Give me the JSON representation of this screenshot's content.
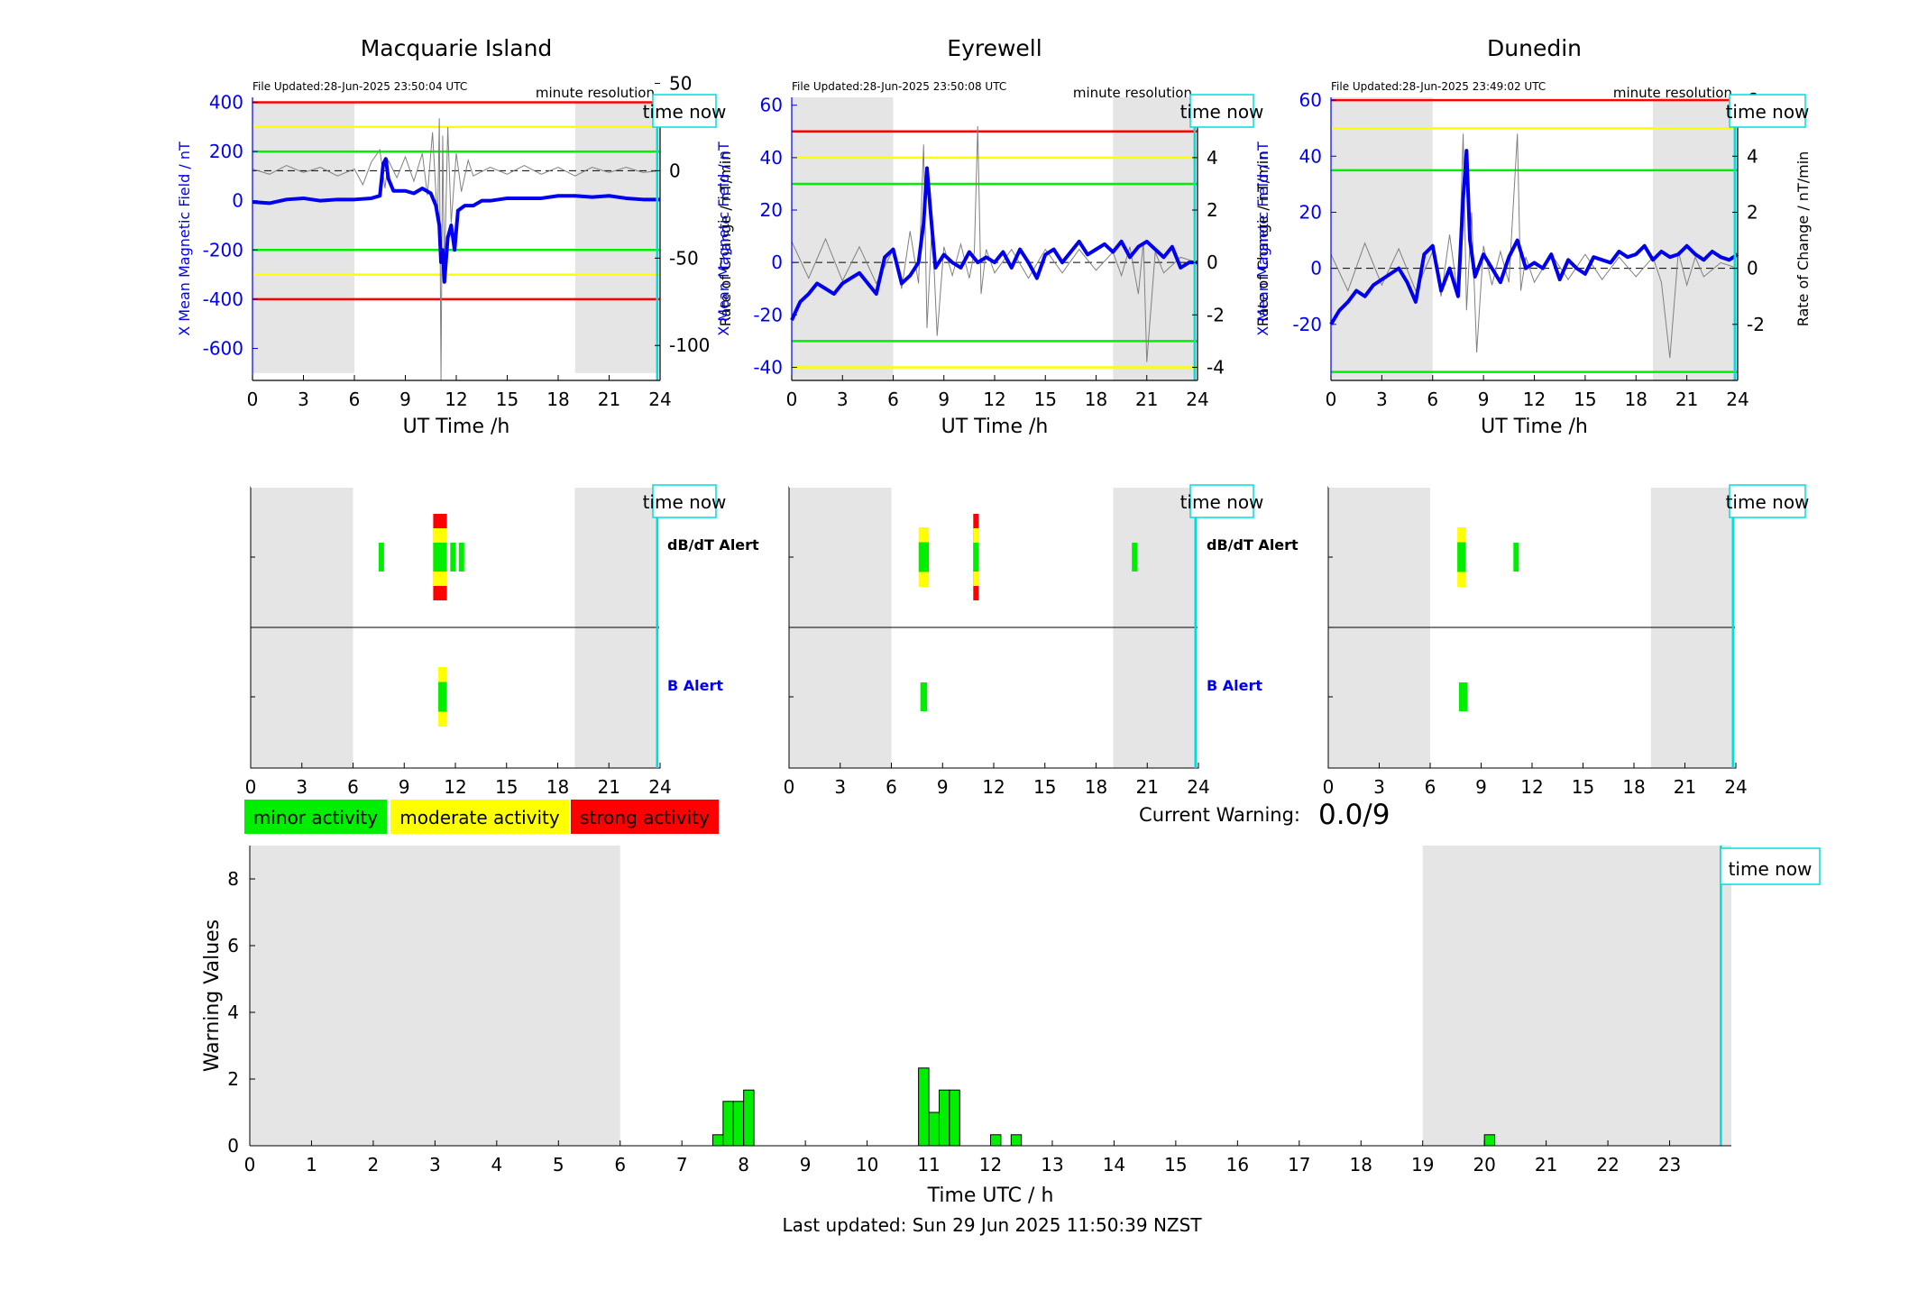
{
  "colors": {
    "blue": "#0000ee",
    "gray_trace": "#808080",
    "red": "#ff0000",
    "yellow": "#ffff00",
    "green": "#00ee00",
    "cyan": "#00dddd",
    "night_shade": "#e5e5e5"
  },
  "common": {
    "minute_resolution": "minute resolution",
    "time_now": "time now",
    "x_label": "UT Time /h",
    "left_axis_label": "X Mean Magnetic Field / nT",
    "right_axis_label": "Rate of Change / nT/min",
    "dbdt_alert": "dB/dT Alert",
    "b_alert": "B Alert"
  },
  "legend": {
    "minor": "minor activity",
    "moderate": "moderate activity",
    "strong": "strong activity"
  },
  "current_warning": {
    "label": "Current Warning:",
    "value": "0.0/9"
  },
  "footer": {
    "last_updated": "Last updated: Sun 29 Jun 2025 11:50:39 NZST"
  },
  "chart_data": [
    {
      "type": "line",
      "title": "Macquarie Island",
      "file_updated": "File Updated:28-Jun-2025 23:50:04 UTC",
      "xlabel": "UT Time /h",
      "ylabel": "X Mean Magnetic Field / nT",
      "y2label": "Rate of Change / nT/min",
      "xlim": [
        0,
        24
      ],
      "xticks": [
        0,
        3,
        6,
        9,
        12,
        15,
        18,
        21,
        24
      ],
      "ylim": [
        -730,
        420
      ],
      "yticks": [
        400,
        200,
        0,
        -200,
        -400,
        -600
      ],
      "y2lim": [
        -120,
        42
      ],
      "y2ticks": [
        50,
        0,
        -50,
        -100
      ],
      "night_bands": [
        [
          0,
          6
        ],
        [
          19,
          24
        ]
      ],
      "night_band_ylim": [
        -700,
        400
      ],
      "thresholds": [
        {
          "level": "strong",
          "values": [
            400,
            -400
          ]
        },
        {
          "level": "moderate",
          "values": [
            300,
            -300
          ]
        },
        {
          "level": "minor",
          "values": [
            200,
            -200
          ]
        }
      ],
      "time_now": 23.83,
      "series": [
        {
          "kind": "mean",
          "x": [
            0,
            1,
            2,
            3,
            4,
            5,
            6,
            7,
            7.5,
            7.7,
            7.85,
            8,
            8.3,
            9,
            9.5,
            10,
            10.5,
            10.8,
            11,
            11.1,
            11.2,
            11.3,
            11.5,
            11.7,
            11.9,
            12.1,
            12.5,
            13,
            13.5,
            14,
            15,
            16,
            17,
            18,
            19,
            20,
            21,
            22,
            23,
            24
          ],
          "y": [
            -5,
            -10,
            5,
            10,
            0,
            5,
            5,
            10,
            20,
            150,
            170,
            90,
            40,
            40,
            30,
            50,
            30,
            -20,
            -100,
            -250,
            -200,
            -330,
            -150,
            -100,
            -200,
            -40,
            -20,
            -20,
            0,
            0,
            10,
            10,
            10,
            20,
            20,
            15,
            20,
            10,
            5,
            5
          ]
        },
        {
          "kind": "rate",
          "x": [
            0,
            1,
            2,
            3,
            4,
            5,
            6,
            6.5,
            7,
            7.5,
            7.8,
            8,
            8.5,
            9,
            9.5,
            10,
            10.3,
            10.6,
            10.9,
            11,
            11.1,
            11.2,
            11.3,
            11.5,
            11.7,
            12,
            12.3,
            12.7,
            13,
            14,
            15,
            16,
            17,
            18,
            19,
            20,
            21,
            22,
            23,
            24
          ],
          "y": [
            1,
            -2,
            3,
            -1,
            2,
            -3,
            1,
            -8,
            5,
            12,
            -10,
            6,
            -4,
            8,
            -6,
            10,
            -14,
            22,
            -30,
            30,
            -120,
            20,
            -60,
            25,
            -30,
            10,
            -12,
            6,
            -3,
            2,
            -2,
            3,
            -2,
            2,
            -3,
            2,
            -1,
            2,
            -1,
            0
          ]
        }
      ]
    },
    {
      "type": "line",
      "title": "Eyrewell",
      "file_updated": "File Updated:28-Jun-2025 23:50:08 UTC",
      "xlabel": "UT Time /h",
      "ylabel": "X Mean Magnetic Field / nT",
      "y2label": "Rate of Change / nT/min",
      "xlim": [
        0,
        24
      ],
      "xticks": [
        0,
        3,
        6,
        9,
        12,
        15,
        18,
        21,
        24
      ],
      "ylim": [
        -45,
        63
      ],
      "yticks": [
        60,
        40,
        20,
        0,
        -20,
        -40
      ],
      "y2lim": [
        -4.5,
        6.3
      ],
      "y2ticks": [
        6,
        4,
        2,
        0,
        -2,
        -4
      ],
      "night_bands": [
        [
          0,
          6
        ],
        [
          19,
          24
        ]
      ],
      "night_band_ylim": [
        -45,
        63
      ],
      "thresholds": [
        {
          "level": "strong",
          "values": [
            50
          ]
        },
        {
          "level": "moderate",
          "values": [
            40,
            -40
          ]
        },
        {
          "level": "minor",
          "values": [
            30,
            -30
          ]
        }
      ],
      "time_now": 23.83,
      "series": [
        {
          "kind": "mean",
          "x": [
            0,
            0.5,
            1,
            1.5,
            2,
            2.5,
            3,
            3.5,
            4,
            4.5,
            5,
            5.5,
            6,
            6.5,
            7,
            7.5,
            7.8,
            8,
            8.2,
            8.5,
            9,
            9.5,
            10,
            10.5,
            11,
            11.5,
            12,
            12.5,
            13,
            13.5,
            14,
            14.5,
            15,
            15.5,
            16,
            16.5,
            17,
            17.5,
            18,
            18.5,
            19,
            19.5,
            20,
            20.5,
            21,
            21.5,
            22,
            22.5,
            23,
            23.5,
            24
          ],
          "y": [
            -22,
            -15,
            -12,
            -8,
            -10,
            -12,
            -8,
            -6,
            -4,
            -8,
            -12,
            2,
            5,
            -8,
            -5,
            0,
            15,
            36,
            20,
            -2,
            3,
            0,
            -2,
            4,
            0,
            2,
            0,
            4,
            -2,
            5,
            0,
            -6,
            3,
            5,
            0,
            4,
            8,
            3,
            5,
            7,
            4,
            8,
            2,
            6,
            8,
            5,
            2,
            6,
            -2,
            0,
            0
          ]
        },
        {
          "kind": "rate",
          "x": [
            0,
            1,
            2,
            3,
            4,
            5,
            6,
            6.5,
            7,
            7.5,
            7.8,
            8,
            8.3,
            8.6,
            9,
            9.5,
            10,
            10.5,
            10.8,
            11,
            11.2,
            11.5,
            12,
            13,
            14,
            15,
            16,
            17,
            18,
            19,
            19.5,
            20,
            20.5,
            20.8,
            21,
            21.5,
            22,
            23,
            24
          ],
          "y": [
            0.8,
            -0.6,
            0.9,
            -0.7,
            0.6,
            -0.8,
            0.5,
            -1,
            1.2,
            -0.8,
            4.5,
            -2.5,
            1.5,
            -2.8,
            0.6,
            -0.5,
            0.7,
            -0.6,
            0.4,
            5.2,
            -1.2,
            0.5,
            -0.4,
            0.5,
            -0.6,
            0.5,
            -0.4,
            0.5,
            -0.3,
            0.4,
            -0.5,
            0.6,
            -1.2,
            0.8,
            -3.8,
            0.4,
            -0.4,
            0.2,
            0
          ]
        }
      ]
    },
    {
      "type": "line",
      "title": "Dunedin",
      "file_updated": "File Updated:28-Jun-2025 23:49:02 UTC",
      "xlabel": "UT Time /h",
      "ylabel": "X Mean Magnetic Field / nT",
      "y2label": "Rate of Change / nT/min",
      "xlim": [
        0,
        24
      ],
      "xticks": [
        0,
        3,
        6,
        9,
        12,
        15,
        18,
        21,
        24
      ],
      "ylim": [
        -40,
        61
      ],
      "yticks": [
        60,
        40,
        20,
        0,
        -20
      ],
      "y2lim": [
        -4,
        6.1
      ],
      "y2ticks": [
        6,
        4,
        2,
        0,
        -2
      ],
      "night_bands": [
        [
          0,
          6
        ],
        [
          19,
          24
        ]
      ],
      "night_band_ylim": [
        -40,
        61
      ],
      "thresholds": [
        {
          "level": "strong",
          "values": [
            60
          ]
        },
        {
          "level": "moderate",
          "values": [
            50
          ]
        },
        {
          "level": "minor",
          "values": [
            35,
            -37
          ]
        }
      ],
      "time_now": 23.83,
      "series": [
        {
          "kind": "mean",
          "x": [
            0,
            0.5,
            1,
            1.5,
            2,
            2.5,
            3,
            3.5,
            4,
            4.5,
            5,
            5.5,
            6,
            6.5,
            7,
            7.5,
            7.8,
            8,
            8.2,
            8.5,
            9,
            9.5,
            10,
            10.5,
            11,
            11.5,
            12,
            12.5,
            13,
            13.5,
            14,
            14.5,
            15,
            15.5,
            16,
            16.5,
            17,
            17.5,
            18,
            18.5,
            19,
            19.5,
            20,
            20.5,
            21,
            21.5,
            22,
            22.5,
            23,
            23.5,
            24
          ],
          "y": [
            -20,
            -15,
            -12,
            -8,
            -10,
            -6,
            -4,
            -2,
            0,
            -5,
            -12,
            5,
            8,
            -8,
            0,
            -10,
            25,
            42,
            10,
            -3,
            5,
            0,
            -5,
            4,
            10,
            0,
            2,
            0,
            5,
            -4,
            3,
            0,
            -2,
            4,
            3,
            2,
            6,
            4,
            5,
            8,
            3,
            6,
            4,
            5,
            8,
            5,
            3,
            6,
            4,
            3,
            5
          ]
        },
        {
          "kind": "rate",
          "x": [
            0,
            1,
            2,
            3,
            4,
            5,
            6,
            6.5,
            7,
            7.5,
            7.8,
            8,
            8.3,
            8.6,
            9,
            9.5,
            10,
            10.5,
            11,
            11.2,
            11.5,
            12,
            13,
            14,
            15,
            16,
            17,
            18,
            19,
            19.5,
            20,
            20.5,
            21,
            21.5,
            22,
            23,
            24
          ],
          "y": [
            0.5,
            -0.8,
            0.9,
            -0.6,
            0.7,
            -0.8,
            0.6,
            -1,
            1.2,
            -1,
            4.8,
            -1.5,
            2,
            -3,
            0.8,
            -0.6,
            0.6,
            -0.5,
            4.8,
            -0.8,
            0.4,
            -0.5,
            0.5,
            -0.4,
            0.5,
            -0.4,
            0.4,
            -0.3,
            0.4,
            -0.5,
            -3.2,
            0.6,
            -0.6,
            0.4,
            -0.3,
            0.2,
            0
          ]
        }
      ]
    },
    {
      "type": "bar",
      "title": "",
      "subtype": "alert-timeline",
      "rows": [
        "dB/dT Alert",
        "B Alert"
      ],
      "xlim": [
        0,
        24
      ],
      "xticks": [
        0,
        3,
        6,
        9,
        12,
        15,
        18,
        21,
        24
      ],
      "night_bands": [
        [
          0,
          6
        ],
        [
          19,
          24
        ]
      ],
      "time_now": 23.83,
      "panels": [
        {
          "station": "Macquarie Island",
          "dbdt": [
            {
              "x0": 7.5,
              "x1": 7.8,
              "levels": [
                "minor"
              ]
            },
            {
              "x0": 10.7,
              "x1": 11.5,
              "levels": [
                "strong",
                "moderate",
                "minor"
              ]
            },
            {
              "x0": 11.7,
              "x1": 12.0,
              "levels": [
                "minor"
              ]
            },
            {
              "x0": 12.2,
              "x1": 12.5,
              "levels": [
                "minor"
              ]
            }
          ],
          "b": [
            {
              "x0": 11.0,
              "x1": 11.5,
              "levels": [
                "moderate",
                "minor"
              ]
            }
          ]
        },
        {
          "station": "Eyrewell",
          "dbdt": [
            {
              "x0": 7.6,
              "x1": 8.2,
              "levels": [
                "moderate",
                "minor"
              ]
            },
            {
              "x0": 10.8,
              "x1": 11.1,
              "levels": [
                "strong",
                "moderate",
                "minor"
              ]
            },
            {
              "x0": 20.1,
              "x1": 20.4,
              "levels": [
                "minor"
              ]
            }
          ],
          "b": [
            {
              "x0": 7.7,
              "x1": 8.1,
              "levels": [
                "minor"
              ]
            }
          ]
        },
        {
          "station": "Dunedin",
          "dbdt": [
            {
              "x0": 7.6,
              "x1": 8.1,
              "levels": [
                "moderate",
                "minor"
              ]
            },
            {
              "x0": 10.9,
              "x1": 11.2,
              "levels": [
                "minor"
              ]
            }
          ],
          "b": [
            {
              "x0": 7.7,
              "x1": 8.2,
              "levels": [
                "minor"
              ]
            }
          ]
        }
      ]
    },
    {
      "type": "bar",
      "title": "",
      "xlabel": "Time UTC / h",
      "ylabel": "Warning Values",
      "xlim": [
        0,
        24
      ],
      "xticks": [
        0,
        1,
        2,
        3,
        4,
        5,
        6,
        7,
        8,
        9,
        10,
        11,
        12,
        13,
        14,
        15,
        16,
        17,
        18,
        19,
        20,
        21,
        22,
        23
      ],
      "ylim": [
        0,
        9
      ],
      "yticks": [
        0,
        2,
        4,
        6,
        8
      ],
      "night_bands": [
        [
          0,
          6
        ],
        [
          19,
          24
        ]
      ],
      "time_now": 23.83,
      "bar_width": 0.1667,
      "x": [
        7.5,
        7.667,
        7.833,
        8.0,
        10.833,
        11.0,
        11.167,
        11.333,
        12.0,
        12.333,
        20.0
      ],
      "values": [
        0.33,
        1.33,
        1.33,
        1.67,
        2.33,
        1.0,
        1.67,
        1.67,
        0.33,
        0.33,
        0.33
      ]
    }
  ]
}
